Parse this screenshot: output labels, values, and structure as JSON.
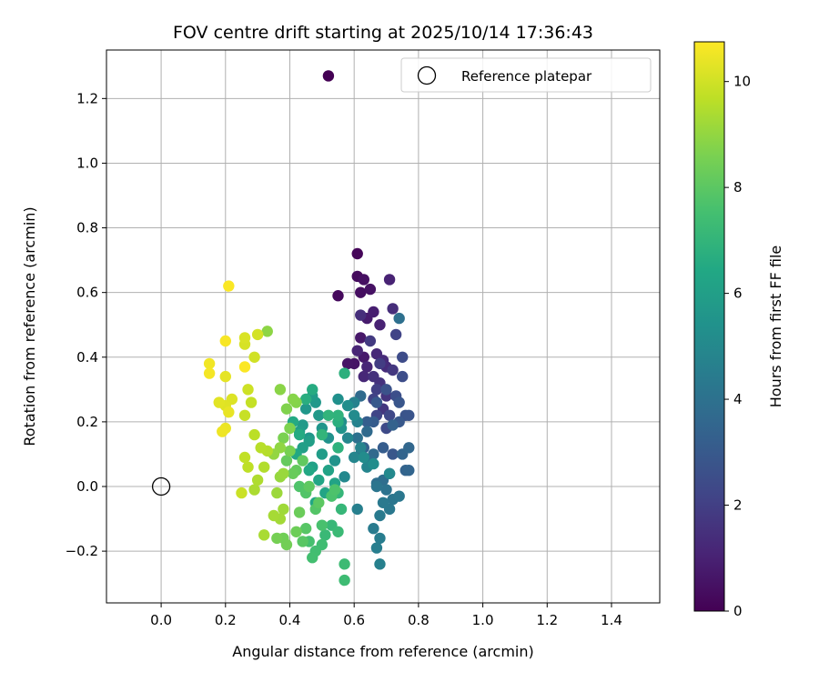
{
  "chart_data": {
    "type": "scatter",
    "title": "FOV centre drift starting at 2025/10/14 17:36:43",
    "xlabel": "Angular distance from reference (arcmin)",
    "ylabel": "Rotation from reference (arcmin)",
    "xlim": [
      -0.17,
      1.55
    ],
    "ylim": [
      -0.36,
      1.35
    ],
    "x_ticks": [
      "0.0",
      "0.2",
      "0.4",
      "0.6",
      "0.8",
      "1.0",
      "1.2",
      "1.4"
    ],
    "x_tick_values": [
      0.0,
      0.2,
      0.4,
      0.6,
      0.8,
      1.0,
      1.2,
      1.4
    ],
    "y_ticks": [
      "−0.2",
      "0.0",
      "0.2",
      "0.4",
      "0.6",
      "0.8",
      "1.0",
      "1.2"
    ],
    "y_tick_values": [
      -0.2,
      0.0,
      0.2,
      0.4,
      0.6,
      0.8,
      1.0,
      1.2
    ],
    "grid": true,
    "colormap": "viridis",
    "colorbar": {
      "label": "Hours from first FF file",
      "range": [
        0,
        10.75
      ],
      "ticks": [
        "0",
        "2",
        "4",
        "6",
        "8",
        "10"
      ],
      "tick_values": [
        0,
        2,
        4,
        6,
        8,
        10
      ]
    },
    "legend": {
      "position": "upper-right",
      "entries": [
        {
          "label": "Reference platepar",
          "marker": "open-circle"
        }
      ]
    },
    "reference_point": {
      "x": 0.0,
      "y": 0.0
    },
    "series": [
      {
        "points": [
          [
            0.52,
            1.27,
            0.0
          ],
          [
            0.61,
            0.72,
            0.15
          ],
          [
            0.55,
            0.59,
            0.25
          ],
          [
            0.61,
            0.65,
            0.3
          ],
          [
            0.62,
            0.6,
            0.4
          ],
          [
            0.63,
            0.64,
            0.45
          ],
          [
            0.65,
            0.61,
            0.5
          ],
          [
            0.6,
            0.38,
            0.55
          ],
          [
            0.58,
            0.38,
            0.6
          ],
          [
            0.62,
            0.46,
            0.7
          ],
          [
            0.63,
            0.4,
            0.75
          ],
          [
            0.64,
            0.52,
            0.8
          ],
          [
            0.66,
            0.54,
            0.9
          ],
          [
            0.68,
            0.5,
            1.0
          ],
          [
            0.71,
            0.64,
            1.05
          ],
          [
            0.61,
            0.42,
            1.1
          ],
          [
            0.64,
            0.37,
            1.15
          ],
          [
            0.63,
            0.34,
            1.2
          ],
          [
            0.67,
            0.41,
            1.25
          ],
          [
            0.69,
            0.39,
            1.3
          ],
          [
            0.7,
            0.37,
            1.35
          ],
          [
            0.72,
            0.55,
            1.4
          ],
          [
            0.62,
            0.53,
            1.45
          ],
          [
            0.66,
            0.34,
            1.5
          ],
          [
            0.68,
            0.32,
            1.55
          ],
          [
            0.7,
            0.28,
            1.6
          ],
          [
            0.69,
            0.24,
            1.7
          ],
          [
            0.72,
            0.36,
            1.75
          ],
          [
            0.65,
            0.45,
            1.8
          ],
          [
            0.68,
            0.38,
            1.9
          ],
          [
            0.67,
            0.3,
            2.0
          ],
          [
            0.66,
            0.27,
            2.1
          ],
          [
            0.73,
            0.47,
            2.15
          ],
          [
            0.67,
            0.22,
            2.2
          ],
          [
            0.71,
            0.22,
            2.3
          ],
          [
            0.7,
            0.18,
            2.4
          ],
          [
            0.75,
            0.4,
            2.45
          ],
          [
            0.75,
            0.34,
            2.5
          ],
          [
            0.73,
            0.28,
            2.6
          ],
          [
            0.7,
            0.3,
            2.7
          ],
          [
            0.76,
            0.22,
            2.75
          ],
          [
            0.77,
            0.22,
            2.8
          ],
          [
            0.74,
            0.26,
            2.85
          ],
          [
            0.72,
            0.1,
            2.9
          ],
          [
            0.74,
            0.2,
            2.95
          ],
          [
            0.67,
            0.26,
            3.0
          ],
          [
            0.66,
            0.2,
            3.1
          ],
          [
            0.69,
            0.12,
            3.15
          ],
          [
            0.64,
            0.2,
            3.2
          ],
          [
            0.63,
            0.12,
            3.3
          ],
          [
            0.72,
            0.19,
            3.35
          ],
          [
            0.76,
            0.05,
            3.4
          ],
          [
            0.75,
            0.1,
            3.45
          ],
          [
            0.77,
            0.05,
            3.5
          ],
          [
            0.77,
            0.12,
            3.55
          ],
          [
            0.71,
            0.04,
            3.6
          ],
          [
            0.66,
            0.1,
            3.65
          ],
          [
            0.64,
            0.17,
            3.7
          ],
          [
            0.62,
            0.28,
            3.75
          ],
          [
            0.65,
            0.08,
            3.8
          ],
          [
            0.69,
            0.02,
            3.85
          ],
          [
            0.67,
            0.01,
            3.9
          ],
          [
            0.74,
            0.52,
            3.95
          ],
          [
            0.61,
            0.15,
            4.0
          ],
          [
            0.62,
            0.1,
            4.05
          ],
          [
            0.7,
            -0.01,
            4.1
          ],
          [
            0.67,
            0.0,
            4.15
          ],
          [
            0.72,
            -0.04,
            4.2
          ],
          [
            0.74,
            -0.03,
            4.25
          ],
          [
            0.71,
            -0.07,
            4.3
          ],
          [
            0.69,
            -0.05,
            4.35
          ],
          [
            0.68,
            -0.09,
            4.4
          ],
          [
            0.66,
            -0.13,
            4.45
          ],
          [
            0.68,
            -0.16,
            4.5
          ],
          [
            0.67,
            -0.19,
            4.55
          ],
          [
            0.61,
            -0.07,
            4.6
          ],
          [
            0.68,
            -0.24,
            4.65
          ],
          [
            0.6,
            0.26,
            4.7
          ],
          [
            0.61,
            0.2,
            4.75
          ],
          [
            0.62,
            0.12,
            4.8
          ],
          [
            0.64,
            0.06,
            4.85
          ],
          [
            0.6,
            0.09,
            4.9
          ],
          [
            0.58,
            0.15,
            4.95
          ],
          [
            0.57,
            0.03,
            5.0
          ],
          [
            0.71,
            0.04,
            5.05
          ],
          [
            0.6,
            0.22,
            5.1
          ],
          [
            0.63,
            0.09,
            5.15
          ],
          [
            0.66,
            0.07,
            5.2
          ],
          [
            0.58,
            0.25,
            5.25
          ],
          [
            0.56,
            0.2,
            5.3
          ],
          [
            0.55,
            0.27,
            5.35
          ],
          [
            0.52,
            0.15,
            5.4
          ],
          [
            0.54,
            0.08,
            5.45
          ],
          [
            0.56,
            0.18,
            5.5
          ],
          [
            0.5,
            0.18,
            5.55
          ],
          [
            0.46,
            0.15,
            5.6
          ],
          [
            0.45,
            0.24,
            5.65
          ],
          [
            0.48,
            0.26,
            5.7
          ],
          [
            0.49,
            0.22,
            5.75
          ],
          [
            0.44,
            0.19,
            5.8
          ],
          [
            0.47,
            0.28,
            5.85
          ],
          [
            0.5,
            0.1,
            5.9
          ],
          [
            0.43,
            0.17,
            5.95
          ],
          [
            0.46,
            0.14,
            6.0
          ],
          [
            0.44,
            0.12,
            6.05
          ],
          [
            0.47,
            0.06,
            6.1
          ],
          [
            0.52,
            0.05,
            6.15
          ],
          [
            0.54,
            0.01,
            6.2
          ],
          [
            0.51,
            -0.02,
            6.25
          ],
          [
            0.49,
            0.02,
            6.3
          ],
          [
            0.48,
            -0.05,
            6.35
          ],
          [
            0.46,
            0.05,
            6.4
          ],
          [
            0.42,
            0.1,
            6.45
          ],
          [
            0.41,
            0.2,
            6.5
          ],
          [
            0.43,
            0.16,
            6.55
          ],
          [
            0.47,
            0.3,
            6.6
          ],
          [
            0.45,
            0.27,
            6.7
          ],
          [
            0.55,
            0.2,
            6.75
          ],
          [
            0.57,
            0.35,
            6.8
          ],
          [
            0.55,
            0.12,
            6.85
          ],
          [
            0.55,
            0.22,
            6.9
          ],
          [
            0.52,
            0.22,
            6.95
          ],
          [
            0.5,
            0.16,
            7.0
          ],
          [
            0.55,
            -0.02,
            7.05
          ],
          [
            0.56,
            -0.07,
            7.1
          ],
          [
            0.53,
            -0.12,
            7.15
          ],
          [
            0.51,
            -0.15,
            7.2
          ],
          [
            0.55,
            -0.14,
            7.25
          ],
          [
            0.57,
            -0.24,
            7.3
          ],
          [
            0.57,
            -0.29,
            7.35
          ],
          [
            0.5,
            -0.18,
            7.4
          ],
          [
            0.48,
            -0.2,
            7.45
          ],
          [
            0.47,
            -0.22,
            7.5
          ],
          [
            0.46,
            -0.17,
            7.55
          ],
          [
            0.5,
            -0.12,
            7.6
          ],
          [
            0.53,
            -0.03,
            7.65
          ],
          [
            0.54,
            -0.01,
            7.7
          ],
          [
            0.43,
            0.0,
            7.75
          ],
          [
            0.45,
            -0.02,
            7.8
          ],
          [
            0.48,
            -0.07,
            7.85
          ],
          [
            0.45,
            -0.13,
            7.9
          ],
          [
            0.44,
            -0.17,
            7.95
          ],
          [
            0.49,
            -0.05,
            8.0
          ],
          [
            0.46,
            0.0,
            8.05
          ],
          [
            0.44,
            0.08,
            8.1
          ],
          [
            0.42,
            0.05,
            8.15
          ],
          [
            0.39,
            0.08,
            8.2
          ],
          [
            0.41,
            0.04,
            8.25
          ],
          [
            0.43,
            -0.08,
            8.3
          ],
          [
            0.42,
            -0.14,
            8.35
          ],
          [
            0.38,
            -0.16,
            8.4
          ],
          [
            0.39,
            -0.18,
            8.45
          ],
          [
            0.36,
            -0.16,
            8.5
          ],
          [
            0.4,
            0.11,
            8.55
          ],
          [
            0.38,
            0.15,
            8.6
          ],
          [
            0.4,
            0.18,
            8.65
          ],
          [
            0.39,
            0.24,
            8.7
          ],
          [
            0.42,
            0.26,
            8.75
          ],
          [
            0.41,
            0.27,
            8.8
          ],
          [
            0.37,
            0.3,
            8.85
          ],
          [
            0.33,
            0.48,
            8.9
          ],
          [
            0.37,
            0.12,
            8.95
          ],
          [
            0.35,
            0.1,
            9.0
          ],
          [
            0.37,
            0.03,
            9.05
          ],
          [
            0.38,
            0.04,
            9.1
          ],
          [
            0.36,
            -0.02,
            9.15
          ],
          [
            0.38,
            -0.07,
            9.2
          ],
          [
            0.37,
            -0.1,
            9.25
          ],
          [
            0.35,
            -0.09,
            9.3
          ],
          [
            0.32,
            -0.15,
            9.35
          ],
          [
            0.29,
            -0.01,
            9.4
          ],
          [
            0.3,
            0.02,
            9.45
          ],
          [
            0.32,
            0.06,
            9.5
          ],
          [
            0.33,
            0.11,
            9.55
          ],
          [
            0.31,
            0.12,
            9.6
          ],
          [
            0.29,
            0.16,
            9.65
          ],
          [
            0.27,
            0.06,
            9.7
          ],
          [
            0.26,
            0.09,
            9.75
          ],
          [
            0.28,
            0.26,
            9.8
          ],
          [
            0.26,
            0.22,
            9.85
          ],
          [
            0.25,
            -0.02,
            9.9
          ],
          [
            0.27,
            0.3,
            9.95
          ],
          [
            0.29,
            0.4,
            10.0
          ],
          [
            0.3,
            0.47,
            10.05
          ],
          [
            0.26,
            0.44,
            10.1
          ],
          [
            0.26,
            0.46,
            10.15
          ],
          [
            0.22,
            0.27,
            10.2
          ],
          [
            0.2,
            0.25,
            10.25
          ],
          [
            0.18,
            0.26,
            10.3
          ],
          [
            0.2,
            0.34,
            10.35
          ],
          [
            0.21,
            0.23,
            10.4
          ],
          [
            0.2,
            0.18,
            10.45
          ],
          [
            0.19,
            0.17,
            10.5
          ],
          [
            0.15,
            0.38,
            10.55
          ],
          [
            0.15,
            0.35,
            10.6
          ],
          [
            0.2,
            0.45,
            10.65
          ],
          [
            0.21,
            0.62,
            10.7
          ],
          [
            0.26,
            0.37,
            10.72
          ]
        ]
      }
    ]
  }
}
